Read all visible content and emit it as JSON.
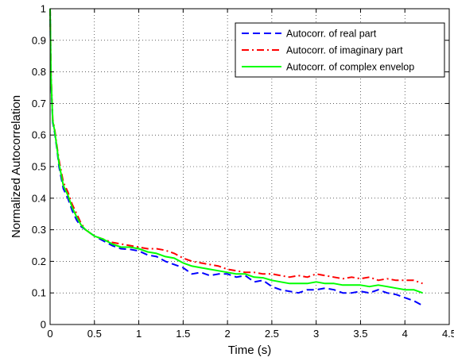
{
  "chart_data": {
    "type": "line",
    "title": "",
    "xlabel": "Time (s)",
    "ylabel": "Normalized Autocorrelation",
    "xlim": [
      0,
      4.5
    ],
    "ylim": [
      0,
      1
    ],
    "xticks": [
      0,
      0.5,
      1,
      1.5,
      2,
      2.5,
      3,
      3.5,
      4,
      4.5
    ],
    "xtick_labels": [
      "0",
      "0.5",
      "1",
      "1.5",
      "2",
      "2.5",
      "3",
      "3.5",
      "4",
      "4.5"
    ],
    "yticks": [
      0,
      0.1,
      0.2,
      0.3,
      0.4,
      0.5,
      0.6,
      0.7,
      0.8,
      0.9,
      1
    ],
    "ytick_labels": [
      "0",
      "0.1",
      "0.2",
      "0.3",
      "0.4",
      "0.5",
      "0.6",
      "0.7",
      "0.8",
      "0.9",
      "1"
    ],
    "grid": true,
    "legend_position": "top-right",
    "series": [
      {
        "name": "Autocorr. of real part",
        "color": "#0000ff",
        "style": "dashed",
        "x": [
          0,
          0.01,
          0.03,
          0.05,
          0.08,
          0.1,
          0.15,
          0.2,
          0.25,
          0.3,
          0.35,
          0.4,
          0.45,
          0.5,
          0.6,
          0.7,
          0.8,
          0.9,
          1.0,
          1.1,
          1.2,
          1.3,
          1.4,
          1.5,
          1.6,
          1.7,
          1.8,
          1.9,
          2.0,
          2.1,
          2.2,
          2.3,
          2.4,
          2.5,
          2.6,
          2.7,
          2.8,
          2.9,
          3.0,
          3.1,
          3.2,
          3.3,
          3.4,
          3.5,
          3.6,
          3.7,
          3.8,
          3.9,
          4.0,
          4.1,
          4.2
        ],
        "y": [
          1.0,
          0.78,
          0.64,
          0.61,
          0.55,
          0.5,
          0.43,
          0.4,
          0.36,
          0.33,
          0.31,
          0.3,
          0.29,
          0.28,
          0.265,
          0.25,
          0.24,
          0.238,
          0.233,
          0.22,
          0.215,
          0.2,
          0.19,
          0.18,
          0.16,
          0.165,
          0.155,
          0.16,
          0.16,
          0.15,
          0.155,
          0.135,
          0.14,
          0.12,
          0.11,
          0.105,
          0.1,
          0.11,
          0.11,
          0.115,
          0.11,
          0.1,
          0.1,
          0.105,
          0.1,
          0.11,
          0.1,
          0.095,
          0.085,
          0.075,
          0.06
        ]
      },
      {
        "name": "Autocorr. of imaginary part",
        "color": "#ff0000",
        "style": "dashdot",
        "x": [
          0,
          0.01,
          0.03,
          0.05,
          0.08,
          0.1,
          0.15,
          0.2,
          0.25,
          0.3,
          0.35,
          0.4,
          0.45,
          0.5,
          0.6,
          0.7,
          0.8,
          0.9,
          1.0,
          1.1,
          1.2,
          1.3,
          1.4,
          1.5,
          1.6,
          1.7,
          1.8,
          1.9,
          2.0,
          2.1,
          2.2,
          2.3,
          2.4,
          2.5,
          2.6,
          2.7,
          2.8,
          2.9,
          3.0,
          3.1,
          3.2,
          3.3,
          3.4,
          3.5,
          3.6,
          3.7,
          3.8,
          3.9,
          4.0,
          4.1,
          4.2
        ],
        "y": [
          1.0,
          0.8,
          0.65,
          0.62,
          0.56,
          0.52,
          0.45,
          0.42,
          0.38,
          0.35,
          0.32,
          0.3,
          0.29,
          0.28,
          0.27,
          0.26,
          0.255,
          0.25,
          0.245,
          0.24,
          0.24,
          0.235,
          0.225,
          0.21,
          0.2,
          0.195,
          0.19,
          0.185,
          0.175,
          0.17,
          0.165,
          0.165,
          0.16,
          0.16,
          0.155,
          0.15,
          0.155,
          0.15,
          0.16,
          0.155,
          0.15,
          0.145,
          0.15,
          0.145,
          0.15,
          0.14,
          0.145,
          0.14,
          0.14,
          0.14,
          0.13
        ]
      },
      {
        "name": "Autocorr. of complex envelop",
        "color": "#00ff00",
        "style": "solid",
        "x": [
          0,
          0.01,
          0.03,
          0.05,
          0.08,
          0.1,
          0.15,
          0.2,
          0.25,
          0.3,
          0.35,
          0.4,
          0.45,
          0.5,
          0.6,
          0.7,
          0.8,
          0.9,
          1.0,
          1.1,
          1.2,
          1.3,
          1.4,
          1.5,
          1.6,
          1.7,
          1.8,
          1.9,
          2.0,
          2.1,
          2.2,
          2.3,
          2.4,
          2.5,
          2.6,
          2.7,
          2.8,
          2.9,
          3.0,
          3.1,
          3.2,
          3.3,
          3.4,
          3.5,
          3.6,
          3.7,
          3.8,
          3.9,
          4.0,
          4.1,
          4.2
        ],
        "y": [
          1.0,
          0.79,
          0.645,
          0.615,
          0.555,
          0.51,
          0.44,
          0.41,
          0.37,
          0.34,
          0.315,
          0.3,
          0.29,
          0.28,
          0.27,
          0.255,
          0.245,
          0.245,
          0.24,
          0.23,
          0.225,
          0.215,
          0.21,
          0.195,
          0.185,
          0.18,
          0.175,
          0.17,
          0.165,
          0.16,
          0.16,
          0.15,
          0.148,
          0.14,
          0.135,
          0.13,
          0.13,
          0.13,
          0.135,
          0.13,
          0.13,
          0.125,
          0.125,
          0.125,
          0.12,
          0.125,
          0.12,
          0.115,
          0.11,
          0.11,
          0.1
        ]
      }
    ]
  }
}
